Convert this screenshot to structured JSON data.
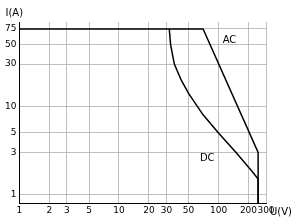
{
  "chart_data": {
    "type": "line",
    "x_label": "U(V)",
    "y_label": "I(A)",
    "log": true,
    "grid": true,
    "xlim": [
      1,
      300
    ],
    "xticks": [
      1,
      2,
      3,
      5,
      10,
      20,
      30,
      50,
      100,
      200,
      300
    ],
    "ylim": [
      0.8,
      90
    ],
    "yticks": [
      1,
      3,
      5,
      10,
      30,
      50,
      75
    ],
    "series": [
      {
        "name": "AC",
        "color": "#000000",
        "x": [
          1,
          70,
          250,
          250
        ],
        "values": [
          75,
          75,
          3,
          0.8
        ]
      },
      {
        "name": "DC",
        "color": "#000000",
        "x": [
          32,
          33,
          36,
          42,
          50,
          70,
          100,
          150,
          220,
          250,
          250
        ],
        "values": [
          75,
          50,
          30,
          20,
          14,
          8,
          5,
          3,
          1.8,
          1.5,
          0.8
        ]
      }
    ],
    "annotations": [
      {
        "text": "AC",
        "x": 110,
        "y": 55
      },
      {
        "text": "DC",
        "x": 65,
        "y": 2.6
      }
    ]
  }
}
